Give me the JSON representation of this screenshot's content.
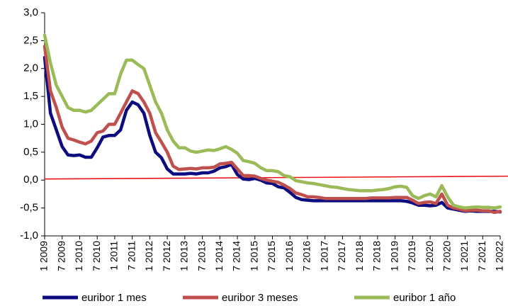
{
  "chart_data": {
    "type": "line",
    "categories": [
      "1 2009",
      null,
      null,
      "7 2009",
      null,
      null,
      "1 2010",
      null,
      null,
      "7 2010",
      null,
      null,
      "1 2011",
      null,
      null,
      "7 2011",
      null,
      null,
      "1 2012",
      null,
      null,
      "7 2012",
      null,
      null,
      "1 2013",
      null,
      null,
      "7 2013",
      null,
      null,
      "1 2014",
      null,
      null,
      "7 2014",
      null,
      null,
      "1 2015",
      null,
      null,
      "7 2015",
      null,
      null,
      "1 2016",
      null,
      null,
      "7 2016",
      null,
      null,
      "1 2017",
      null,
      null,
      "7 2017",
      null,
      null,
      "1 2018",
      null,
      null,
      "7 2018",
      null,
      null,
      "1 2019",
      null,
      null,
      "7 2019",
      null,
      null,
      "1 2020",
      null,
      null,
      "7 2020",
      null,
      null,
      "1 2021",
      null,
      null,
      "7 2021",
      null,
      null,
      "1 2022"
    ],
    "series": [
      {
        "name": "euribor 1 mes",
        "color": "#0d0d80",
        "values": [
          2.2,
          1.2,
          0.9,
          0.6,
          0.45,
          0.44,
          0.45,
          0.41,
          0.41,
          0.58,
          0.77,
          0.8,
          0.8,
          0.9,
          1.25,
          1.4,
          1.35,
          1.2,
          0.8,
          0.5,
          0.4,
          0.2,
          0.11,
          0.11,
          0.11,
          0.12,
          0.11,
          0.13,
          0.13,
          0.16,
          0.22,
          0.24,
          0.28,
          0.1,
          0.02,
          0.01,
          0.03,
          0.0,
          -0.05,
          -0.06,
          -0.12,
          -0.14,
          -0.22,
          -0.31,
          -0.35,
          -0.36,
          -0.37,
          -0.37,
          -0.37,
          -0.37,
          -0.37,
          -0.37,
          -0.37,
          -0.37,
          -0.37,
          -0.37,
          -0.37,
          -0.37,
          -0.37,
          -0.37,
          -0.37,
          -0.37,
          -0.38,
          -0.41,
          -0.45,
          -0.45,
          -0.46,
          -0.45,
          -0.4,
          -0.5,
          -0.52,
          -0.54,
          -0.56,
          -0.55,
          -0.56,
          -0.56,
          -0.56,
          -0.56,
          -0.57
        ]
      },
      {
        "name": "euribor 3 meses",
        "color": "#c0504d",
        "values": [
          2.4,
          1.6,
          1.3,
          0.95,
          0.75,
          0.72,
          0.68,
          0.65,
          0.7,
          0.85,
          0.88,
          1.0,
          1.0,
          1.2,
          1.4,
          1.6,
          1.55,
          1.4,
          1.2,
          0.85,
          0.68,
          0.5,
          0.25,
          0.19,
          0.2,
          0.21,
          0.2,
          0.22,
          0.22,
          0.23,
          0.29,
          0.3,
          0.32,
          0.2,
          0.08,
          0.08,
          0.07,
          0.03,
          0.0,
          -0.02,
          -0.04,
          -0.09,
          -0.15,
          -0.23,
          -0.26,
          -0.3,
          -0.3,
          -0.31,
          -0.33,
          -0.33,
          -0.33,
          -0.33,
          -0.33,
          -0.33,
          -0.33,
          -0.33,
          -0.32,
          -0.32,
          -0.32,
          -0.32,
          -0.31,
          -0.31,
          -0.31,
          -0.36,
          -0.42,
          -0.4,
          -0.39,
          -0.42,
          -0.25,
          -0.45,
          -0.5,
          -0.52,
          -0.55,
          -0.54,
          -0.54,
          -0.55,
          -0.55,
          -0.58,
          -0.56
        ]
      },
      {
        "name": "euribor 1 año",
        "color": "#9bbb59",
        "values": [
          2.6,
          2.1,
          1.7,
          1.5,
          1.3,
          1.25,
          1.25,
          1.22,
          1.25,
          1.35,
          1.45,
          1.55,
          1.55,
          1.9,
          2.15,
          2.15,
          2.07,
          2.0,
          1.7,
          1.4,
          1.2,
          0.9,
          0.7,
          0.58,
          0.58,
          0.52,
          0.5,
          0.52,
          0.54,
          0.53,
          0.56,
          0.6,
          0.55,
          0.48,
          0.35,
          0.33,
          0.3,
          0.22,
          0.17,
          0.17,
          0.15,
          0.08,
          0.06,
          -0.01,
          -0.03,
          -0.05,
          -0.06,
          -0.08,
          -0.1,
          -0.12,
          -0.13,
          -0.15,
          -0.17,
          -0.18,
          -0.19,
          -0.19,
          -0.19,
          -0.18,
          -0.17,
          -0.15,
          -0.12,
          -0.11,
          -0.13,
          -0.28,
          -0.33,
          -0.28,
          -0.25,
          -0.3,
          -0.1,
          -0.3,
          -0.45,
          -0.48,
          -0.5,
          -0.49,
          -0.48,
          -0.49,
          -0.49,
          -0.5,
          -0.48
        ]
      }
    ],
    "reference_line": {
      "color": "#e8141b",
      "values": [
        0.02,
        0.07
      ]
    },
    "ylim": [
      -1.0,
      3.0
    ],
    "yticks": [
      {
        "value": 3.0,
        "label": "3,0"
      },
      {
        "value": 2.5,
        "label": "2,5"
      },
      {
        "value": 2.0,
        "label": "2,0"
      },
      {
        "value": 1.5,
        "label": "1,5"
      },
      {
        "value": 1.0,
        "label": "1,0"
      },
      {
        "value": 0.5,
        "label": "0,5"
      },
      {
        "value": 0.0,
        "label": "0,0"
      },
      {
        "value": -0.5,
        "label": "-0,5"
      },
      {
        "value": -1.0,
        "label": "-1,0"
      }
    ],
    "grid": false,
    "legend": "bottom"
  }
}
